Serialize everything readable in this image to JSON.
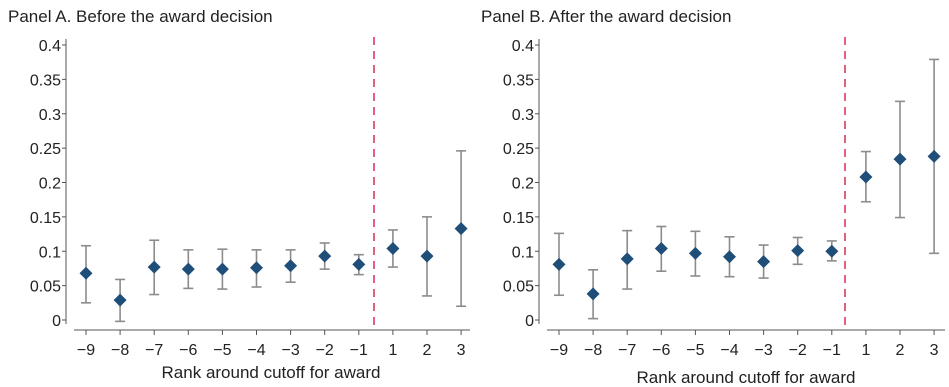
{
  "colors": {
    "marker": "#1f4e79",
    "error_bar": "#8c8c8c",
    "cutoff_line": "#e0607e",
    "axis": "#555555"
  },
  "chart_data": [
    {
      "type": "scatter",
      "title": "Panel A. Before the award decision",
      "xlabel": "Rank around cutoff for award",
      "ylabel": "",
      "x_ticks": [
        -9,
        -8,
        -7,
        -6,
        -5,
        -4,
        -3,
        -2,
        -1,
        1,
        2,
        3
      ],
      "x_tick_labels": [
        "−9",
        "−8",
        "−7",
        "−6",
        "−5",
        "−4",
        "−3",
        "−2",
        "−1",
        "1",
        "2",
        "3"
      ],
      "y_ticks": [
        0,
        0.05,
        0.1,
        0.15,
        0.2,
        0.25,
        0.3,
        0.35,
        0.4
      ],
      "y_tick_labels": [
        "0",
        "0.05",
        "0.1",
        "0.15",
        "0.2",
        "0.25",
        "0.3",
        "0.35",
        "0.4"
      ],
      "ylim": [
        0,
        0.4
      ],
      "grid": false,
      "cutoff_line": "vertical dashed line between -1 and 1",
      "points": [
        {
          "x": -9,
          "y": 0.068,
          "lower": 0.025,
          "upper": 0.108
        },
        {
          "x": -8,
          "y": 0.029,
          "lower": -0.002,
          "upper": 0.059
        },
        {
          "x": -7,
          "y": 0.077,
          "lower": 0.037,
          "upper": 0.116
        },
        {
          "x": -6,
          "y": 0.074,
          "lower": 0.046,
          "upper": 0.102
        },
        {
          "x": -5,
          "y": 0.074,
          "lower": 0.045,
          "upper": 0.103
        },
        {
          "x": -4,
          "y": 0.076,
          "lower": 0.048,
          "upper": 0.102
        },
        {
          "x": -3,
          "y": 0.079,
          "lower": 0.055,
          "upper": 0.102
        },
        {
          "x": -2,
          "y": 0.093,
          "lower": 0.074,
          "upper": 0.112
        },
        {
          "x": -1,
          "y": 0.081,
          "lower": 0.066,
          "upper": 0.095
        },
        {
          "x": 1,
          "y": 0.104,
          "lower": 0.077,
          "upper": 0.131
        },
        {
          "x": 2,
          "y": 0.093,
          "lower": 0.035,
          "upper": 0.15
        },
        {
          "x": 3,
          "y": 0.133,
          "lower": 0.02,
          "upper": 0.246
        }
      ]
    },
    {
      "type": "scatter",
      "title": "Panel B. After the award decision",
      "xlabel": "Rank around cutoff for award",
      "ylabel": "",
      "x_ticks": [
        -9,
        -8,
        -7,
        -6,
        -5,
        -4,
        -3,
        -2,
        -1,
        1,
        2,
        3
      ],
      "x_tick_labels": [
        "−9",
        "−8",
        "−7",
        "−6",
        "−5",
        "−4",
        "−3",
        "−2",
        "−1",
        "1",
        "2",
        "3"
      ],
      "y_ticks": [
        0,
        0.05,
        0.1,
        0.15,
        0.2,
        0.25,
        0.3,
        0.35,
        0.4
      ],
      "y_tick_labels": [
        "0",
        "0.05",
        "0.1",
        "0.15",
        "0.2",
        "0.25",
        "0.3",
        "0.35",
        "0.4"
      ],
      "ylim": [
        0,
        0.4
      ],
      "grid": false,
      "cutoff_line": "vertical dashed line between -1 and 1",
      "points": [
        {
          "x": -9,
          "y": 0.081,
          "lower": 0.036,
          "upper": 0.126
        },
        {
          "x": -8,
          "y": 0.038,
          "lower": 0.002,
          "upper": 0.073
        },
        {
          "x": -7,
          "y": 0.089,
          "lower": 0.045,
          "upper": 0.13
        },
        {
          "x": -6,
          "y": 0.104,
          "lower": 0.071,
          "upper": 0.136
        },
        {
          "x": -5,
          "y": 0.097,
          "lower": 0.064,
          "upper": 0.129
        },
        {
          "x": -4,
          "y": 0.092,
          "lower": 0.063,
          "upper": 0.121
        },
        {
          "x": -3,
          "y": 0.085,
          "lower": 0.061,
          "upper": 0.109
        },
        {
          "x": -2,
          "y": 0.101,
          "lower": 0.081,
          "upper": 0.12
        },
        {
          "x": -1,
          "y": 0.1,
          "lower": 0.086,
          "upper": 0.115
        },
        {
          "x": 1,
          "y": 0.208,
          "lower": 0.172,
          "upper": 0.245
        },
        {
          "x": 2,
          "y": 0.234,
          "lower": 0.149,
          "upper": 0.318
        },
        {
          "x": 3,
          "y": 0.238,
          "lower": 0.097,
          "upper": 0.379
        }
      ]
    }
  ]
}
